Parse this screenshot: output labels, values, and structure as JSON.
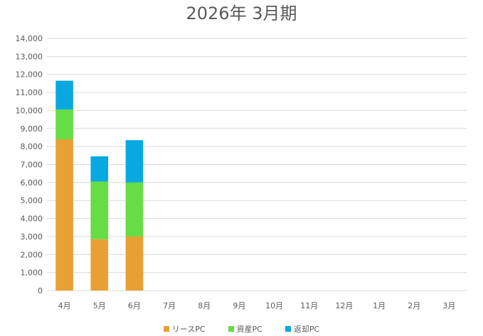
{
  "chart_data": {
    "type": "bar",
    "stacked": true,
    "title": "2026年 3月期",
    "categories": [
      "4月",
      "5月",
      "6月",
      "7月",
      "8月",
      "9月",
      "10月",
      "11月",
      "12月",
      "1月",
      "2月",
      "3月"
    ],
    "series": [
      {
        "name": "リースPC",
        "color": "#E8A033",
        "values": [
          8400,
          2850,
          3000,
          0,
          0,
          0,
          0,
          0,
          0,
          0,
          0,
          0
        ]
      },
      {
        "name": "資産PC",
        "color": "#66DD44",
        "values": [
          1650,
          3200,
          3000,
          0,
          0,
          0,
          0,
          0,
          0,
          0,
          0,
          0
        ]
      },
      {
        "name": "返却PC",
        "color": "#0AA8E0",
        "values": [
          1600,
          1400,
          2350,
          0,
          0,
          0,
          0,
          0,
          0,
          0,
          0,
          0
        ]
      }
    ],
    "ylim": [
      0,
      14000
    ],
    "yticks": [
      "0",
      "1,000",
      "2,000",
      "3,000",
      "4,000",
      "5,000",
      "6,000",
      "7,000",
      "8,000",
      "9,000",
      "10,000",
      "11,000",
      "12,000",
      "13,000",
      "14,000"
    ],
    "xlabel": "",
    "ylabel": "",
    "grid": true,
    "legend_position": "bottom"
  }
}
